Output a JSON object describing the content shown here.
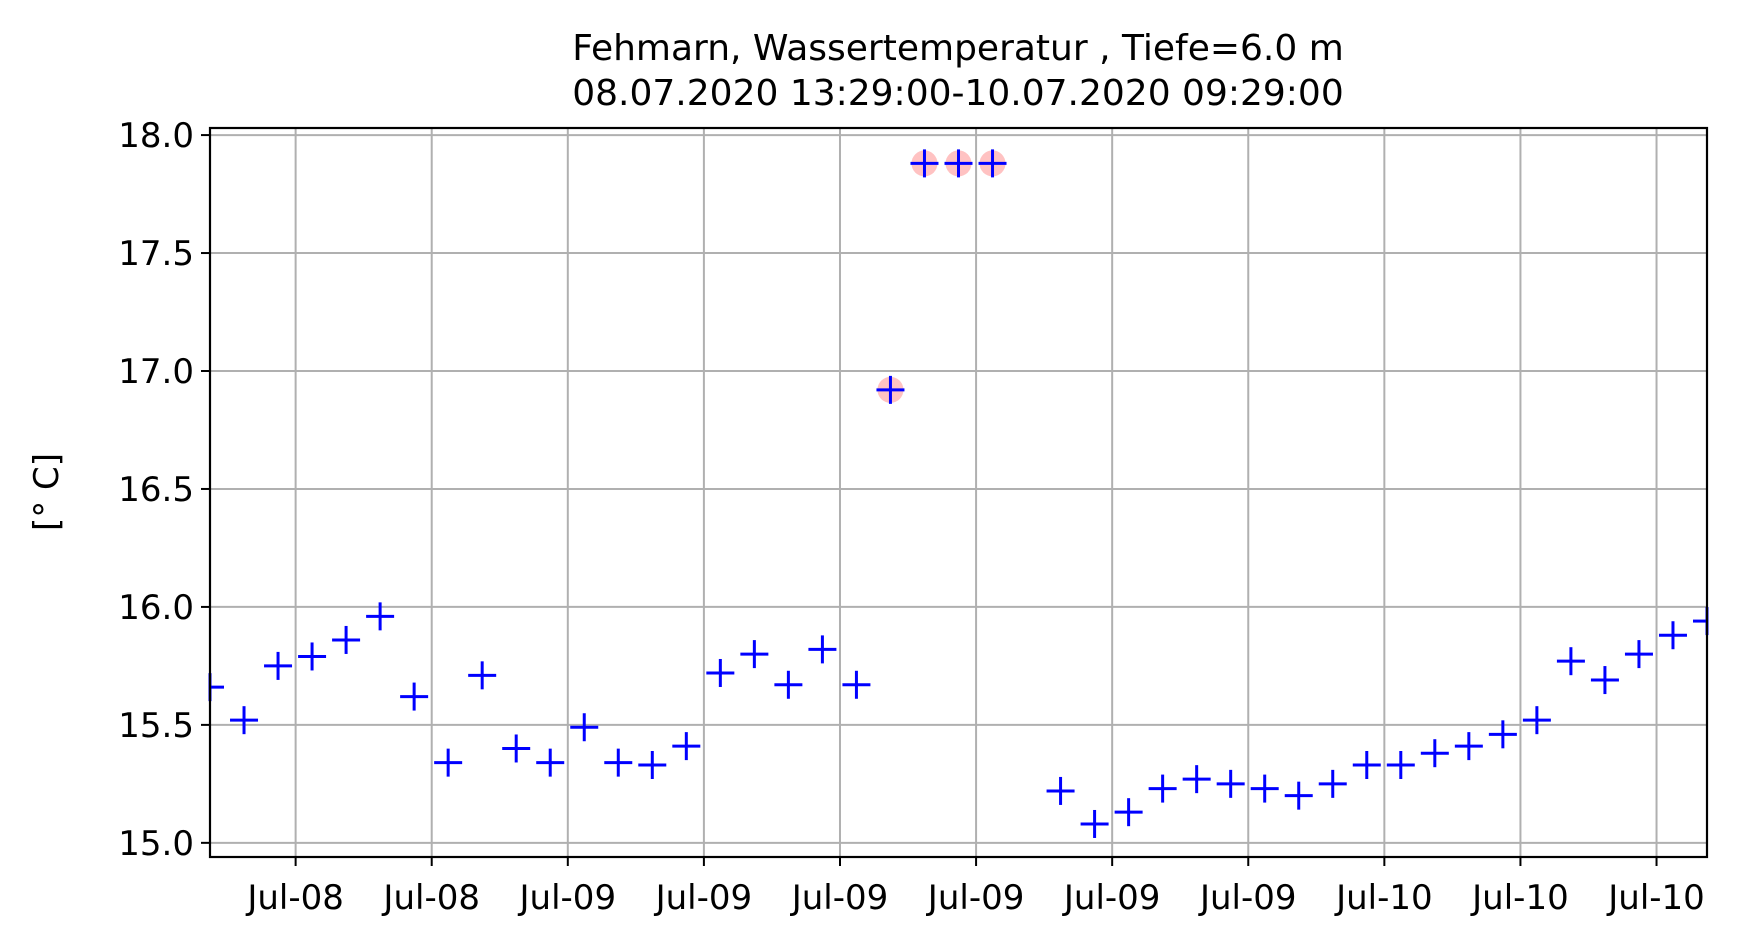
{
  "chart_data": {
    "type": "scatter",
    "title_line1": "Fehmarn, Wassertemperatur , Tiefe=6.0 m",
    "title_line2": "08.07.2020 13:29:00-10.07.2020 09:29:00",
    "xlabel": "",
    "ylabel": "[° C]",
    "xlim": [
      "2020-07-08 13:29",
      "2020-07-10 09:29"
    ],
    "ylim": [
      14.94,
      18.03
    ],
    "yticks": [
      15.0,
      15.5,
      16.0,
      16.5,
      17.0,
      17.5,
      18.0
    ],
    "ytick_labels": [
      "15.0",
      "15.5",
      "16.0",
      "16.5",
      "17.0",
      "17.5",
      "18.0"
    ],
    "xticks": [
      {
        "label": "Jul-08",
        "t": "2020-07-08 16:00"
      },
      {
        "label": "Jul-08",
        "t": "2020-07-08 20:00"
      },
      {
        "label": "Jul-09",
        "t": "2020-07-09 00:00"
      },
      {
        "label": "Jul-09",
        "t": "2020-07-09 04:00"
      },
      {
        "label": "Jul-09",
        "t": "2020-07-09 08:00"
      },
      {
        "label": "Jul-09",
        "t": "2020-07-09 12:00"
      },
      {
        "label": "Jul-09",
        "t": "2020-07-09 16:00"
      },
      {
        "label": "Jul-09",
        "t": "2020-07-09 20:00"
      },
      {
        "label": "Jul-10",
        "t": "2020-07-10 00:00"
      },
      {
        "label": "Jul-10",
        "t": "2020-07-10 04:00"
      },
      {
        "label": "Jul-10",
        "t": "2020-07-10 08:00"
      }
    ],
    "grid": true,
    "marker_color": "#0000ff",
    "flag_color": "#ff9a9a",
    "points": [
      {
        "t": "2020-07-08 13:29",
        "y": 15.66,
        "flag": false
      },
      {
        "t": "2020-07-08 14:29",
        "y": 15.52,
        "flag": false
      },
      {
        "t": "2020-07-08 15:29",
        "y": 15.75,
        "flag": false
      },
      {
        "t": "2020-07-08 16:29",
        "y": 15.79,
        "flag": false
      },
      {
        "t": "2020-07-08 17:29",
        "y": 15.86,
        "flag": false
      },
      {
        "t": "2020-07-08 18:29",
        "y": 15.96,
        "flag": false
      },
      {
        "t": "2020-07-08 19:29",
        "y": 15.62,
        "flag": false
      },
      {
        "t": "2020-07-08 20:29",
        "y": 15.34,
        "flag": false
      },
      {
        "t": "2020-07-08 21:29",
        "y": 15.71,
        "flag": false
      },
      {
        "t": "2020-07-08 22:29",
        "y": 15.4,
        "flag": false
      },
      {
        "t": "2020-07-08 23:29",
        "y": 15.34,
        "flag": false
      },
      {
        "t": "2020-07-09 00:29",
        "y": 15.49,
        "flag": false
      },
      {
        "t": "2020-07-09 01:29",
        "y": 15.34,
        "flag": false
      },
      {
        "t": "2020-07-09 02:29",
        "y": 15.33,
        "flag": false
      },
      {
        "t": "2020-07-09 03:29",
        "y": 15.41,
        "flag": false
      },
      {
        "t": "2020-07-09 04:29",
        "y": 15.72,
        "flag": false
      },
      {
        "t": "2020-07-09 05:29",
        "y": 15.8,
        "flag": false
      },
      {
        "t": "2020-07-09 06:29",
        "y": 15.67,
        "flag": false
      },
      {
        "t": "2020-07-09 07:29",
        "y": 15.82,
        "flag": false
      },
      {
        "t": "2020-07-09 08:29",
        "y": 15.67,
        "flag": false
      },
      {
        "t": "2020-07-09 09:29",
        "y": 16.92,
        "flag": true
      },
      {
        "t": "2020-07-09 10:29",
        "y": 17.88,
        "flag": true
      },
      {
        "t": "2020-07-09 11:29",
        "y": 17.88,
        "flag": true
      },
      {
        "t": "2020-07-09 12:29",
        "y": 17.88,
        "flag": true
      },
      {
        "t": "2020-07-09 14:29",
        "y": 15.22,
        "flag": false
      },
      {
        "t": "2020-07-09 15:29",
        "y": 15.08,
        "flag": false
      },
      {
        "t": "2020-07-09 16:29",
        "y": 15.13,
        "flag": false
      },
      {
        "t": "2020-07-09 17:29",
        "y": 15.23,
        "flag": false
      },
      {
        "t": "2020-07-09 18:29",
        "y": 15.27,
        "flag": false
      },
      {
        "t": "2020-07-09 19:29",
        "y": 15.25,
        "flag": false
      },
      {
        "t": "2020-07-09 20:29",
        "y": 15.23,
        "flag": false
      },
      {
        "t": "2020-07-09 21:29",
        "y": 15.2,
        "flag": false
      },
      {
        "t": "2020-07-09 22:29",
        "y": 15.25,
        "flag": false
      },
      {
        "t": "2020-07-09 23:29",
        "y": 15.33,
        "flag": false
      },
      {
        "t": "2020-07-10 00:29",
        "y": 15.33,
        "flag": false
      },
      {
        "t": "2020-07-10 01:29",
        "y": 15.38,
        "flag": false
      },
      {
        "t": "2020-07-10 02:29",
        "y": 15.41,
        "flag": false
      },
      {
        "t": "2020-07-10 03:29",
        "y": 15.46,
        "flag": false
      },
      {
        "t": "2020-07-10 04:29",
        "y": 15.52,
        "flag": false
      },
      {
        "t": "2020-07-10 05:29",
        "y": 15.77,
        "flag": false
      },
      {
        "t": "2020-07-10 06:29",
        "y": 15.69,
        "flag": false
      },
      {
        "t": "2020-07-10 07:29",
        "y": 15.8,
        "flag": false
      },
      {
        "t": "2020-07-10 08:29",
        "y": 15.88,
        "flag": false
      },
      {
        "t": "2020-07-10 09:29",
        "y": 15.94,
        "flag": false
      }
    ]
  }
}
